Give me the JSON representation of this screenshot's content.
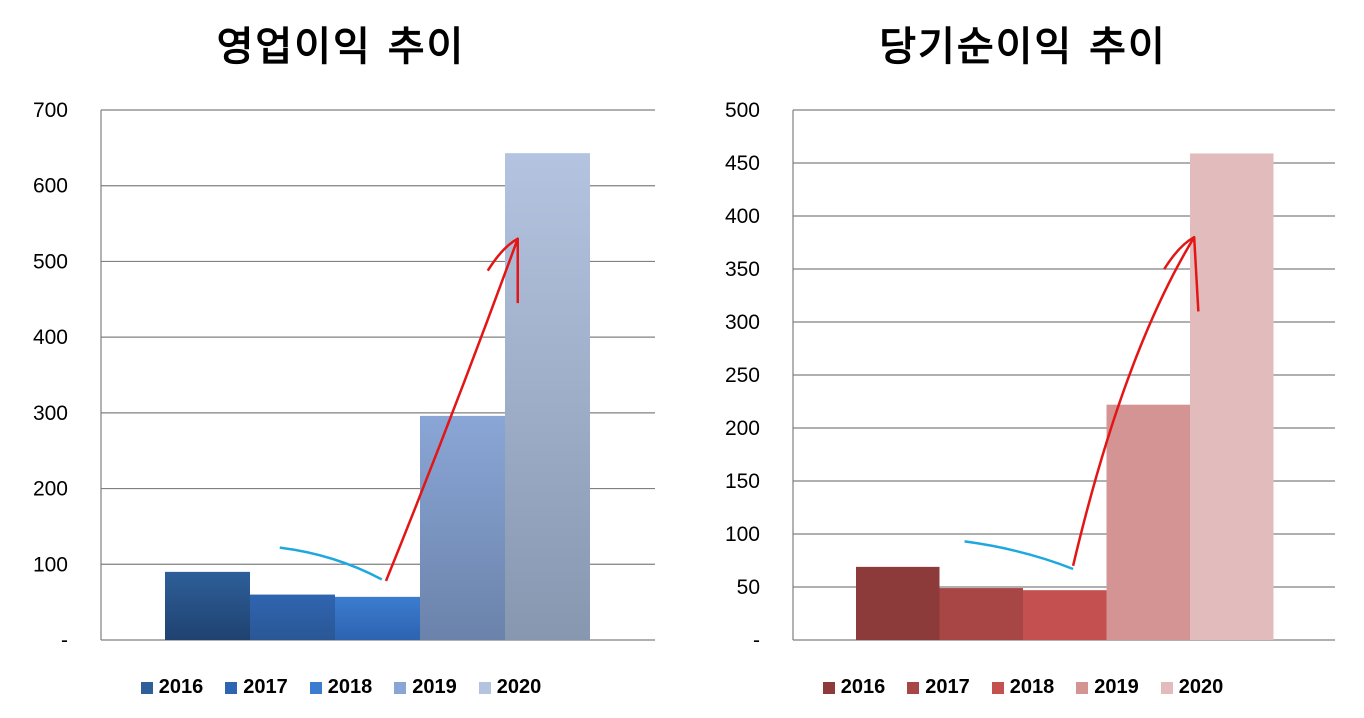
{
  "chart_data": [
    {
      "type": "bar",
      "title": "영업이익 추이",
      "categories": [
        "2016",
        "2017",
        "2018",
        "2019",
        "2020"
      ],
      "values": [
        90,
        60,
        57,
        296,
        643
      ],
      "ylim": [
        0,
        700
      ],
      "yticks": [
        0,
        100,
        200,
        300,
        400,
        500,
        600,
        700
      ],
      "yticklabels": [
        "-",
        "100",
        "200",
        "300",
        "400",
        "500",
        "600",
        "700"
      ],
      "grid": true,
      "legend": "bottom",
      "colors": {
        "2016": [
          "#2e5f99",
          "#1f4270"
        ],
        "2017": [
          "#2f65b0",
          "#2a5796"
        ],
        "2018": [
          "#3c7ccf",
          "#2d63b0"
        ],
        "2019": [
          "#8aa6d6",
          "#6b83ab"
        ],
        "2020": [
          "#b4c4e0",
          "#8897b0"
        ]
      },
      "annotations": {
        "blue_line": [
          [
            1.35,
            122
          ],
          [
            2.0,
            105
          ],
          [
            2.55,
            80
          ]
        ],
        "red_arrow": [
          [
            2.6,
            78
          ],
          [
            3.4,
            300
          ],
          [
            4.15,
            530
          ],
          [
            4.15,
            445
          ]
        ]
      }
    },
    {
      "type": "bar",
      "title": "당기순이익 추이",
      "categories": [
        "2016",
        "2017",
        "2018",
        "2019",
        "2020"
      ],
      "values": [
        69,
        49,
        47,
        222,
        459
      ],
      "ylim": [
        0,
        500
      ],
      "yticks": [
        0,
        50,
        100,
        150,
        200,
        250,
        300,
        350,
        400,
        450,
        500
      ],
      "yticklabels": [
        "-",
        "50",
        "100",
        "150",
        "200",
        "250",
        "300",
        "350",
        "400",
        "450",
        "500"
      ],
      "grid": true,
      "legend": "bottom",
      "colors": {
        "2016": [
          "#8c3a3a",
          "#8c3a3a"
        ],
        "2017": [
          "#a84646",
          "#a84646"
        ],
        "2018": [
          "#c45050",
          "#c45050"
        ],
        "2019": [
          "#d49494",
          "#d49494"
        ],
        "2020": [
          "#e2bcbc",
          "#e2bcbc"
        ]
      },
      "annotations": {
        "blue_line": [
          [
            1.3,
            93
          ],
          [
            2.0,
            80
          ],
          [
            2.6,
            67
          ]
        ],
        "red_arrow": [
          [
            2.6,
            70
          ],
          [
            3.2,
            270
          ],
          [
            4.05,
            380
          ],
          [
            4.1,
            310
          ]
        ]
      }
    }
  ]
}
